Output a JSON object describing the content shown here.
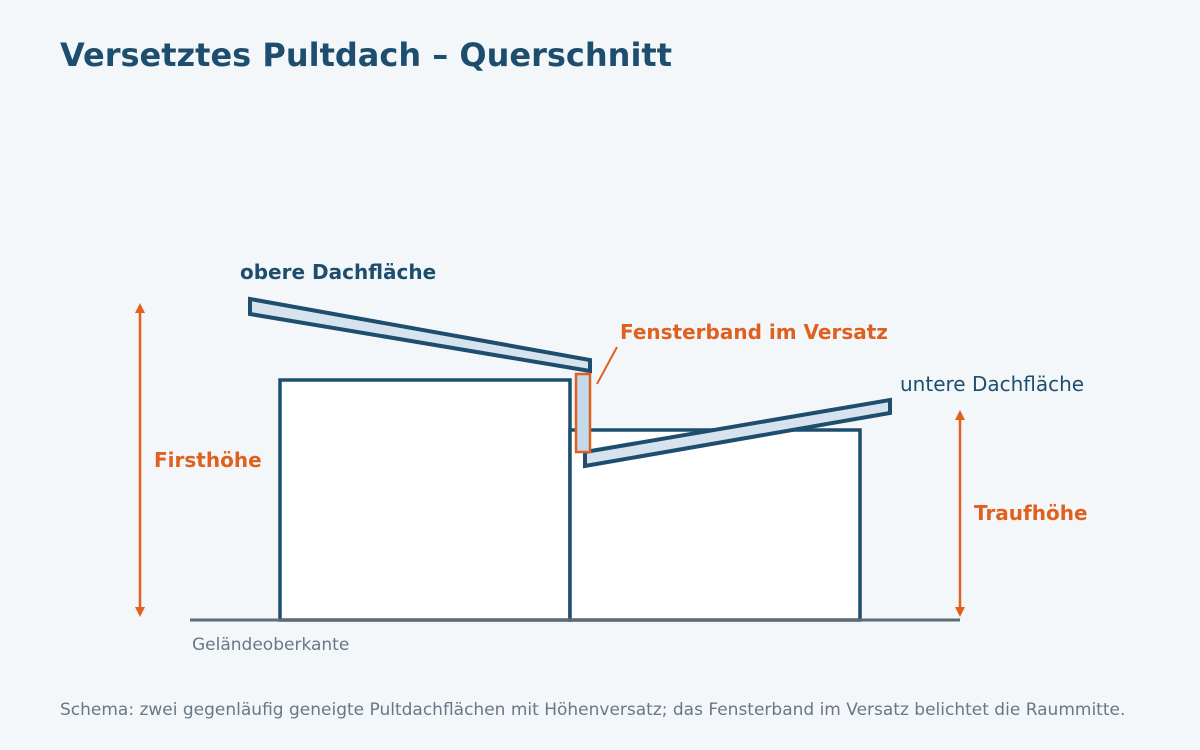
{
  "title": "Versetztes Pultdach – Querschnitt",
  "labels": {
    "upper_roof": "obere Dachfläche",
    "lower_roof": "untere Dachfläche",
    "window_band": "Fensterband im Versatz",
    "ridge_height": "Firsthöhe",
    "eaves_height": "Traufhöhe",
    "ground": "Geländeoberkante"
  },
  "caption": "Schema: zwei gegenläufig geneigte Pultdachflächen mit Höhenversatz; das Fensterband im Versatz belichtet die Raummitte.",
  "colors": {
    "structure": "#1e4e6e",
    "accent": "#e0611f",
    "roof_fill": "#d6e3ee",
    "window_fill": "#c4dbec",
    "ground": "#5f6b78",
    "background": "#f3f7fa"
  }
}
